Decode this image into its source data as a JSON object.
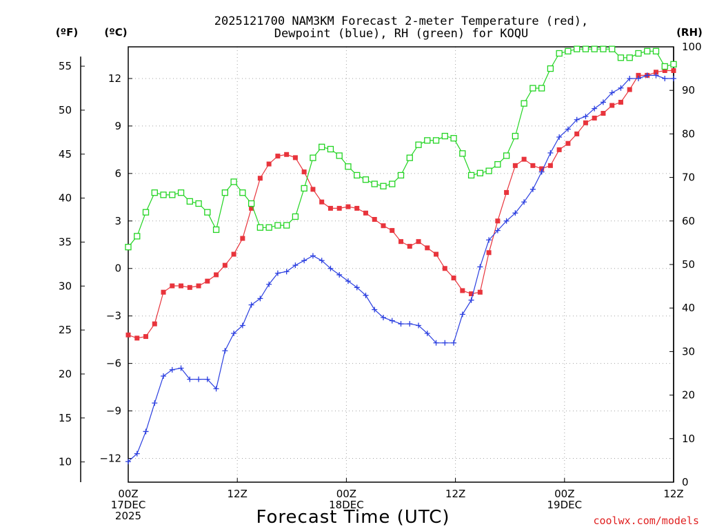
{
  "chart_data": {
    "type": "line",
    "title_lines": [
      "2025121700 NAM3KM Forecast 2-meter Temperature (red),",
      "Dewpoint (blue), RH (green) for KOQU"
    ],
    "xlabel": "Forecast Time (UTC)",
    "credit": "coolwx.com/models",
    "units": {
      "fahrenheit": "(ºF)",
      "celsius": "(ºC)",
      "rh": "(RH)"
    },
    "x_ticks": [
      {
        "hour": 0,
        "lines": [
          "00Z",
          "17DEC",
          "2025"
        ]
      },
      {
        "hour": 12,
        "lines": [
          "12Z"
        ]
      },
      {
        "hour": 24,
        "lines": [
          "00Z",
          "18DEC"
        ]
      },
      {
        "hour": 36,
        "lines": [
          "12Z"
        ]
      },
      {
        "hour": 48,
        "lines": [
          "00Z",
          "19DEC"
        ]
      },
      {
        "hour": 60,
        "lines": [
          "12Z"
        ]
      }
    ],
    "x_range_hours": [
      0,
      60
    ],
    "celsius_axis": {
      "range": [
        -13.5,
        14.0
      ],
      "ticks": [
        -12,
        -9,
        -6,
        -3,
        0,
        3,
        6,
        9,
        12
      ]
    },
    "fahrenheit_axis": {
      "ticks": [
        10,
        15,
        20,
        25,
        30,
        35,
        40,
        45,
        50,
        55
      ]
    },
    "rh_axis": {
      "range": [
        0,
        100
      ],
      "ticks": [
        0,
        10,
        20,
        30,
        40,
        50,
        60,
        70,
        80,
        90,
        100
      ]
    },
    "series": [
      {
        "name": "Temperature",
        "color": "#e8343c",
        "marker": "filled-square",
        "axis": "celsius",
        "values": [
          -4.2,
          -4.4,
          -4.3,
          -3.5,
          -1.5,
          -1.1,
          -1.1,
          -1.2,
          -1.1,
          -0.8,
          -0.4,
          0.2,
          0.9,
          1.9,
          3.8,
          5.7,
          6.6,
          7.1,
          7.2,
          7.0,
          6.1,
          5.0,
          4.2,
          3.8,
          3.8,
          3.9,
          3.8,
          3.5,
          3.1,
          2.7,
          2.4,
          1.7,
          1.4,
          1.7,
          1.3,
          0.9,
          0.0,
          -0.6,
          -1.4,
          -1.6,
          -1.5,
          1.0,
          3.0,
          4.8,
          6.5,
          6.9,
          6.5,
          6.3,
          6.5,
          7.5,
          7.9,
          8.5,
          9.2,
          9.5,
          9.8,
          10.3,
          10.5,
          11.3,
          12.2,
          12.2,
          12.4,
          12.5,
          12.5
        ]
      },
      {
        "name": "Dewpoint",
        "color": "#2a3ee0",
        "marker": "plus",
        "axis": "celsius",
        "values": [
          -12.2,
          -11.7,
          -10.3,
          -8.5,
          -6.8,
          -6.4,
          -6.3,
          -7.0,
          -7.0,
          -7.0,
          -7.6,
          -5.2,
          -4.1,
          -3.6,
          -2.3,
          -1.9,
          -1.0,
          -0.3,
          -0.2,
          0.2,
          0.5,
          0.8,
          0.5,
          0.0,
          -0.4,
          -0.8,
          -1.2,
          -1.7,
          -2.6,
          -3.1,
          -3.3,
          -3.5,
          -3.5,
          -3.6,
          -4.1,
          -4.7,
          -4.7,
          -4.7,
          -2.9,
          -2.0,
          0.1,
          1.8,
          2.4,
          3.0,
          3.5,
          4.2,
          5.0,
          6.1,
          7.3,
          8.3,
          8.8,
          9.4,
          9.6,
          10.1,
          10.5,
          11.1,
          11.4,
          12.0,
          12.0,
          12.2,
          12.2,
          12.0,
          12.0
        ]
      },
      {
        "name": "RH",
        "color": "#22d422",
        "marker": "open-square",
        "axis": "rh",
        "values": [
          54,
          56.5,
          62,
          66.5,
          66,
          66,
          66.5,
          64.5,
          64,
          62,
          58,
          66.5,
          69,
          66.5,
          64,
          58.5,
          58.5,
          59,
          59,
          61,
          67.5,
          74.5,
          77,
          76.5,
          75,
          72.5,
          70.5,
          69.5,
          68.5,
          68,
          68.5,
          70.5,
          74.5,
          77.5,
          78.5,
          78.5,
          79.5,
          79,
          75.5,
          70.5,
          71,
          71.5,
          73,
          75,
          79.5,
          87,
          90.5,
          90.5,
          95,
          98.5,
          99,
          99.5,
          99.5,
          99.5,
          99.5,
          99.5,
          97.5,
          97.5,
          98.5,
          99,
          99,
          95.5,
          96
        ]
      }
    ]
  }
}
